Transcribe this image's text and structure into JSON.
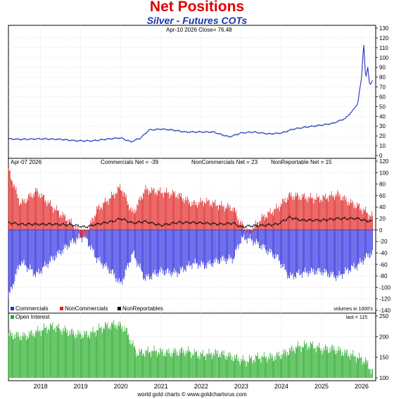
{
  "header": {
    "title": "Net Positions",
    "subtitle": "Silver - Futures COTs"
  },
  "panels": {
    "price": {
      "date_label": "Apr-10  2026   Close= 76.48",
      "color": "#2233bb"
    },
    "positions": {
      "date_label": "Apr-07  2026",
      "commercials_net": "Commercials Net = -39",
      "noncommercials_net": "NonCommercials Net = 23",
      "nonreportable_net": "NonReportable Net = 15",
      "legend": [
        {
          "label": "Commercials",
          "color": "#2a2ae0"
        },
        {
          "label": "NonCommercials",
          "color": "#e02020"
        },
        {
          "label": "NonReportables",
          "color": "#000000"
        }
      ],
      "units_note": "volumes in 1000's"
    },
    "open_interest": {
      "legend_label": "Open Interest",
      "legend_color": "#22aa22",
      "last_label": "last = 115"
    }
  },
  "footer": {
    "source": "world gold charts © www.goldchartsrus.com"
  },
  "chart_data": [
    {
      "type": "line",
      "series": [
        {
          "name": "Close",
          "x": [
            2017.2,
            2017.5,
            2018.0,
            2018.5,
            2018.9,
            2019.3,
            2019.7,
            2020.0,
            2020.25,
            2020.5,
            2020.7,
            2021.0,
            2021.3,
            2021.6,
            2022.0,
            2022.3,
            2022.7,
            2023.0,
            2023.3,
            2023.7,
            2024.0,
            2024.3,
            2024.6,
            2025.0,
            2025.3,
            2025.6,
            2025.8,
            2025.9,
            2026.0,
            2026.05,
            2026.1,
            2026.15,
            2026.2,
            2026.27
          ],
          "values": [
            17,
            16.5,
            17,
            16.5,
            15,
            15,
            17,
            18,
            14,
            18,
            26,
            27,
            26,
            24,
            24,
            24,
            19,
            23,
            24,
            22,
            23,
            27,
            29,
            31,
            33,
            38,
            47,
            53,
            80,
            115,
            78,
            90,
            72,
            76.48
          ]
        }
      ],
      "xlim": [
        2017.2,
        2026.35
      ],
      "ylim": [
        0,
        130
      ],
      "yticks": [
        0,
        10,
        20,
        30,
        40,
        50,
        60,
        70,
        80,
        90,
        100,
        110,
        120,
        130
      ]
    },
    {
      "type": "bar",
      "series": [
        {
          "name": "Commercials",
          "x": [
            2017.2,
            2017.5,
            2017.9,
            2018.3,
            2018.8,
            2019.1,
            2019.4,
            2019.8,
            2020.0,
            2020.3,
            2020.6,
            2021.0,
            2021.4,
            2021.8,
            2022.1,
            2022.5,
            2022.8,
            2023.0,
            2023.2,
            2023.5,
            2023.9,
            2024.2,
            2024.5,
            2024.8,
            2025.0,
            2025.4,
            2025.7,
            2025.9,
            2026.1,
            2026.27
          ],
          "values": [
            -118,
            -55,
            -78,
            -50,
            -20,
            -10,
            -50,
            -75,
            -95,
            -40,
            -85,
            -72,
            -75,
            -58,
            -62,
            -52,
            -50,
            -15,
            -15,
            -28,
            -48,
            -82,
            -75,
            -72,
            -72,
            -82,
            -68,
            -62,
            -48,
            -39
          ]
        },
        {
          "name": "NonCommercials",
          "x": [
            2017.2,
            2017.5,
            2017.9,
            2018.3,
            2018.8,
            2019.1,
            2019.4,
            2019.8,
            2020.0,
            2020.3,
            2020.6,
            2021.0,
            2021.4,
            2021.8,
            2022.1,
            2022.5,
            2022.8,
            2023.0,
            2023.2,
            2023.5,
            2023.9,
            2024.2,
            2024.5,
            2024.8,
            2025.0,
            2025.4,
            2025.7,
            2025.9,
            2026.1,
            2026.27
          ],
          "values": [
            105,
            45,
            68,
            40,
            10,
            -15,
            35,
            60,
            75,
            28,
            70,
            66,
            62,
            45,
            50,
            42,
            38,
            10,
            -5,
            20,
            38,
            60,
            58,
            55,
            55,
            62,
            48,
            42,
            32,
            23
          ]
        },
        {
          "name": "NonReportables",
          "x": [
            2017.2,
            2017.5,
            2017.9,
            2018.3,
            2018.8,
            2019.1,
            2019.4,
            2019.8,
            2020.0,
            2020.3,
            2020.6,
            2021.0,
            2021.4,
            2021.8,
            2022.1,
            2022.5,
            2022.8,
            2023.0,
            2023.2,
            2023.5,
            2023.9,
            2024.2,
            2024.5,
            2024.8,
            2025.0,
            2025.4,
            2025.7,
            2025.9,
            2026.1,
            2026.27
          ],
          "values": [
            13,
            10,
            10,
            10,
            9,
            5,
            10,
            15,
            20,
            12,
            15,
            8,
            13,
            13,
            12,
            10,
            12,
            5,
            7,
            8,
            10,
            22,
            17,
            17,
            17,
            20,
            20,
            20,
            16,
            15
          ]
        }
      ],
      "xlim": [
        2017.2,
        2026.35
      ],
      "ylim": [
        -140,
        120
      ],
      "yticks": [
        -140,
        -120,
        -100,
        -80,
        -60,
        -40,
        -20,
        0,
        20,
        40,
        60,
        80,
        100,
        120
      ]
    },
    {
      "type": "bar",
      "series": [
        {
          "name": "Open Interest",
          "x": [
            2017.2,
            2017.6,
            2018.0,
            2018.3,
            2018.6,
            2018.9,
            2019.2,
            2019.6,
            2019.9,
            2020.1,
            2020.4,
            2020.8,
            2021.2,
            2021.6,
            2022.0,
            2022.4,
            2022.8,
            2023.1,
            2023.4,
            2023.8,
            2024.1,
            2024.4,
            2024.7,
            2025.0,
            2025.3,
            2025.6,
            2025.9,
            2026.1,
            2026.27
          ],
          "values": [
            205,
            200,
            215,
            225,
            215,
            205,
            205,
            225,
            230,
            220,
            160,
            165,
            160,
            165,
            155,
            160,
            150,
            140,
            150,
            150,
            160,
            175,
            180,
            170,
            170,
            160,
            150,
            140,
            115
          ]
        }
      ],
      "xlim": [
        2017.2,
        2026.35
      ],
      "ylim": [
        100,
        250
      ],
      "yticks": [
        100,
        150,
        200,
        250
      ]
    }
  ],
  "x_axis": {
    "years": [
      "2018",
      "2019",
      "2020",
      "2021",
      "2022",
      "2023",
      "2024",
      "2025",
      "2026"
    ]
  }
}
